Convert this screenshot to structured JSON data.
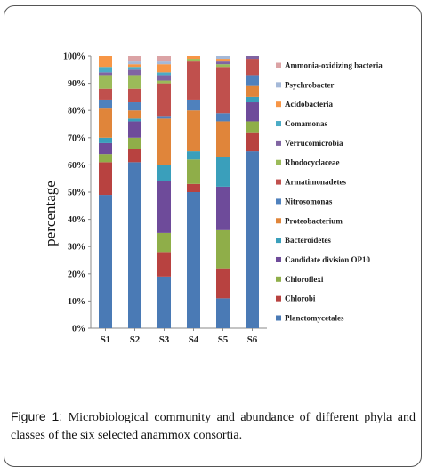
{
  "chart_data": {
    "type": "bar",
    "stacked": true,
    "categories": [
      "S1",
      "S2",
      "S3",
      "S4",
      "S5",
      "S6"
    ],
    "ylabel": "percentage",
    "ylim": [
      0,
      100
    ],
    "yticks": [
      "0%",
      "10%",
      "20%",
      "30%",
      "40%",
      "50%",
      "60%",
      "70%",
      "80%",
      "90%",
      "100%"
    ],
    "legend_position": "right",
    "series": [
      {
        "name": "Planctomycetales",
        "color": "#4a7ab5",
        "values": [
          49,
          61,
          19,
          50,
          11,
          65
        ]
      },
      {
        "name": "Chlorobi",
        "color": "#b84240",
        "values": [
          12,
          5,
          9,
          3,
          11,
          7
        ]
      },
      {
        "name": "Chloroflexi",
        "color": "#8fae49",
        "values": [
          3,
          4,
          7,
          9,
          14,
          4
        ]
      },
      {
        "name": "Candidate division OP10",
        "color": "#6e4b9a",
        "values": [
          4,
          6,
          19,
          0,
          16,
          7
        ]
      },
      {
        "name": "Bacteroidetes",
        "color": "#3a9fbb",
        "values": [
          2,
          1,
          6,
          3,
          11,
          2
        ]
      },
      {
        "name": "Proteobacterium",
        "color": "#e0853a",
        "values": [
          11,
          3,
          17,
          15,
          13,
          4
        ]
      },
      {
        "name": "Nitrosomonas",
        "color": "#4f81bd",
        "values": [
          3,
          3,
          1,
          4,
          3,
          4
        ]
      },
      {
        "name": "Armatimonadetes",
        "color": "#c0504d",
        "values": [
          4,
          5,
          12,
          14,
          17,
          6
        ]
      },
      {
        "name": "Rhodocyclaceae",
        "color": "#9bbb59",
        "values": [
          5,
          5,
          1,
          1,
          1,
          0
        ]
      },
      {
        "name": "Verrucomicrobia",
        "color": "#8064a2",
        "values": [
          1,
          2,
          2,
          0,
          1,
          1
        ]
      },
      {
        "name": "Comamonas",
        "color": "#4bacc6",
        "values": [
          2,
          1,
          1,
          0,
          0,
          0
        ]
      },
      {
        "name": "Acidobacteria",
        "color": "#f79646",
        "values": [
          4,
          1,
          3,
          1,
          1,
          0
        ]
      },
      {
        "name": "Psychrobacter",
        "color": "#a5b9d8",
        "values": [
          0,
          1,
          1,
          0,
          1,
          0
        ]
      },
      {
        "name": "Ammonia-oxidizing bacteria",
        "color": "#dba3a5",
        "values": [
          0,
          2,
          2,
          0,
          0,
          0
        ]
      }
    ]
  },
  "caption": {
    "label": "Figure 1:",
    "text": " Microbiological community and abundance of different phyla and classes of the six selected anammox consortia."
  }
}
